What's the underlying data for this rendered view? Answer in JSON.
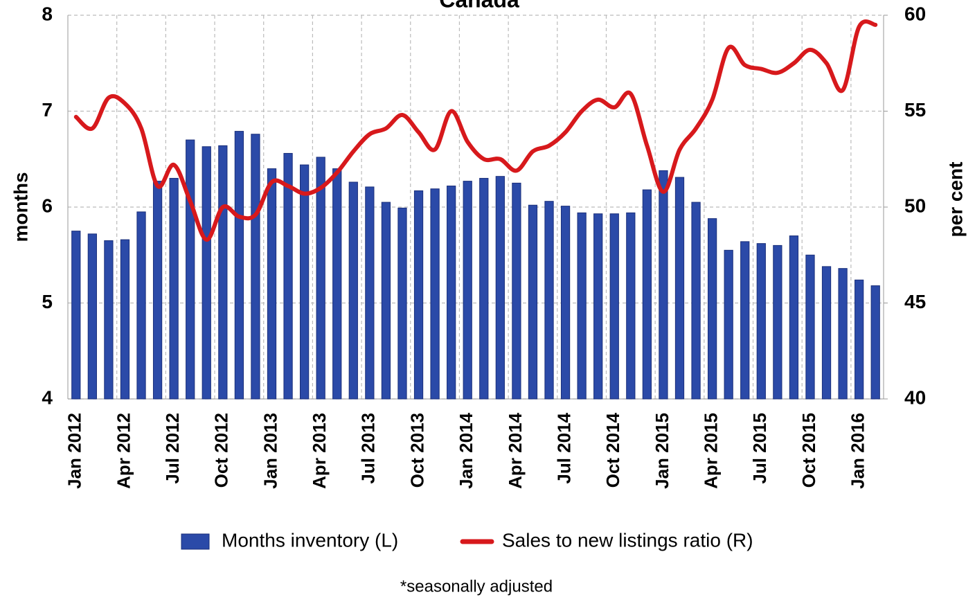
{
  "chart_data": {
    "type": "bar-line",
    "title": "Canada",
    "y_label": "months",
    "y2_label": "per cent",
    "footnote": "*seasonally adjusted",
    "categories": [
      "Jan 2012",
      null,
      null,
      "Apr 2012",
      null,
      null,
      "Jul 2012",
      null,
      null,
      "Oct 2012",
      null,
      null,
      "Jan 2013",
      null,
      null,
      "Apr 2013",
      null,
      null,
      "Jul 2013",
      null,
      null,
      "Oct 2013",
      null,
      null,
      "Jan 2014",
      null,
      null,
      "Apr 2014",
      null,
      null,
      "Jul 2014",
      null,
      null,
      "Oct 2014",
      null,
      null,
      "Jan 2015",
      null,
      null,
      "Apr 2015",
      null,
      null,
      "Jul 2015",
      null,
      null,
      "Oct 2015",
      null,
      null,
      "Jan 2016",
      null
    ],
    "series": [
      {
        "name": "Months inventory (L)",
        "type": "bar",
        "color": "#2b4aa8",
        "axis": "y",
        "values": [
          5.75,
          5.72,
          5.65,
          5.66,
          5.95,
          6.27,
          6.3,
          6.7,
          6.63,
          6.64,
          6.79,
          6.76,
          6.4,
          6.56,
          6.44,
          6.52,
          6.4,
          6.26,
          6.21,
          6.05,
          5.99,
          6.17,
          6.19,
          6.22,
          6.27,
          6.3,
          6.32,
          6.25,
          6.02,
          6.06,
          6.01,
          5.94,
          5.93,
          5.93,
          5.94,
          6.18,
          6.38,
          6.31,
          6.05,
          5.88,
          5.55,
          5.64,
          5.62,
          5.6,
          5.7,
          5.5,
          5.38,
          5.36,
          5.24,
          5.18
        ]
      },
      {
        "name": "Sales to new listings ratio (R)",
        "type": "line",
        "color": "#d7191c",
        "axis": "y2",
        "values": [
          54.7,
          54.1,
          55.7,
          55.4,
          54.1,
          51.1,
          52.2,
          50.3,
          48.3,
          50.0,
          49.5,
          49.6,
          51.3,
          51.1,
          50.7,
          51.0,
          51.8,
          52.9,
          53.8,
          54.1,
          54.8,
          53.9,
          53.0,
          55.0,
          53.4,
          52.5,
          52.5,
          51.9,
          52.9,
          53.2,
          53.9,
          55.0,
          55.6,
          55.2,
          55.9,
          53.2,
          50.8,
          53.0,
          54.1,
          55.6,
          58.3,
          57.4,
          57.2,
          57.0,
          57.5,
          58.2,
          57.5,
          56.1,
          59.4,
          59.5
        ]
      }
    ],
    "ylim": [
      4,
      8
    ],
    "yticks": [
      4,
      5,
      6,
      7,
      8
    ],
    "y2lim": [
      40,
      60
    ],
    "y2ticks": [
      40,
      45,
      50,
      55,
      60
    ],
    "grid": true
  }
}
